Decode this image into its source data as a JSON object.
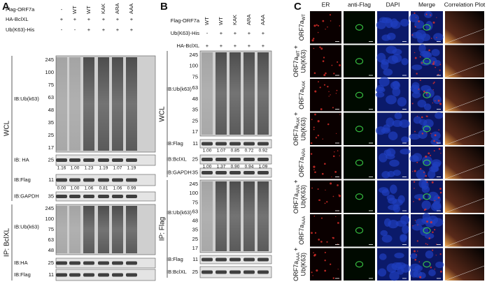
{
  "panel_a": {
    "label": "A",
    "conditions": [
      {
        "name": "Flag-ORF7a",
        "values": [
          "-",
          "WT",
          "WT",
          "KAK",
          "ARA",
          "AAA"
        ]
      },
      {
        "name": "HA-BclXL",
        "values": [
          "+",
          "+",
          "+",
          "+",
          "+",
          "+"
        ]
      },
      {
        "name": "Ub(K63)-His",
        "values": [
          "-",
          "-",
          "+",
          "+",
          "+",
          "+"
        ]
      }
    ],
    "groups": [
      {
        "name": "WCL",
        "blots": [
          {
            "antibody": "IB:Ub(k63)",
            "markers": [
              "245",
              "100",
              "75",
              "63",
              "48",
              "35",
              "25",
              "17"
            ]
          },
          {
            "antibody": "IB: HA",
            "markers": [
              "25"
            ],
            "quantification": [
              "1.16",
              "1.00",
              "1.23",
              "1.19",
              "1.07",
              "1.19"
            ]
          },
          {
            "antibody": "IB:Flag",
            "markers": [
              "11"
            ],
            "quantification": [
              "0.00",
              "1.00",
              "1.06",
              "0.81",
              "1.06",
              "0.99"
            ]
          },
          {
            "antibody": "IB:GAPDH",
            "markers": [
              "35"
            ]
          }
        ]
      },
      {
        "name": "IP: BclXL",
        "blots": [
          {
            "antibody": "IB:Ub(k63)",
            "markers": [
              "245",
              "100",
              "75",
              "63",
              "48"
            ]
          },
          {
            "antibody": "IB:HA",
            "markers": [
              "25"
            ]
          },
          {
            "antibody": "IB:Flag",
            "markers": [
              "11"
            ]
          }
        ]
      }
    ]
  },
  "panel_b": {
    "label": "B",
    "conditions": [
      {
        "name": "Flag-ORF7a",
        "values": [
          "WT",
          "WT",
          "KAK",
          "ARA",
          "AAA"
        ]
      },
      {
        "name": "Ub(K63)-His",
        "values": [
          "-",
          "+",
          "+",
          "+",
          "+"
        ]
      },
      {
        "name": "HA-BclXL",
        "values": [
          "+",
          "+",
          "+",
          "+",
          "+"
        ]
      }
    ],
    "groups": [
      {
        "name": "WCL",
        "blots": [
          {
            "antibody": "IB:Ub(k63)",
            "markers": [
              "245",
              "100",
              "75",
              "63",
              "48",
              "35",
              "25",
              "17"
            ]
          },
          {
            "antibody": "IB:Flag",
            "markers": [
              "11"
            ],
            "quantification": [
              "1.00",
              "1.07",
              "0.85",
              "0.72",
              "0.92"
            ]
          },
          {
            "antibody": "IB:BclXL",
            "markers": [
              "25"
            ],
            "quantification": [
              "1.00",
              "1.37",
              "0.90",
              "0.94",
              "1.09"
            ]
          },
          {
            "antibody": "IB:GAPDH",
            "markers": [
              "35"
            ]
          }
        ]
      },
      {
        "name": "IP: Flag",
        "blots": [
          {
            "antibody": "IB:Ub(k63)",
            "markers": [
              "245",
              "100",
              "75",
              "63",
              "48",
              "35",
              "25",
              "17"
            ]
          },
          {
            "antibody": "IB:Flag",
            "markers": [
              "11"
            ]
          },
          {
            "antibody": "IB:BclXL",
            "markers": [
              "25"
            ]
          }
        ]
      }
    ]
  },
  "panel_c": {
    "label": "C",
    "columns": [
      "ER",
      "anti-Flag",
      "DAPI",
      "Merge",
      "Correlation Plot"
    ],
    "rows": [
      {
        "name": "ORF7a",
        "sub": "WT"
      },
      {
        "name": "ORF7a",
        "sub": "WT",
        "suffix": "+",
        "line2": "Ub(K63)"
      },
      {
        "name": "ORF7a",
        "sub": "KAK"
      },
      {
        "name": "ORF7a",
        "sub": "KAK",
        "suffix": "+",
        "line2": "Ub(K63)"
      },
      {
        "name": "ORF7a",
        "sub": "ARA"
      },
      {
        "name": "ORF7a",
        "sub": "ARA",
        "suffix": "+",
        "line2": "Ub(K63)"
      },
      {
        "name": "ORF7a",
        "sub": "AAA"
      },
      {
        "name": "ORF7a",
        "sub": "AAA",
        "suffix": "+",
        "line2": "Ub(K63)"
      }
    ]
  }
}
